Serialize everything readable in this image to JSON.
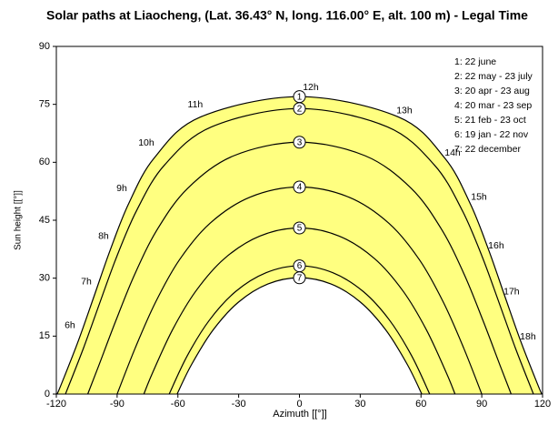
{
  "chart_data": {
    "type": "line",
    "title": "Solar paths at  Liaocheng, (Lat. 36.43° N, long. 116.00° E, alt. 100 m) - Legal Time",
    "x_label": "Azimuth [[°]]",
    "y_label": "Sun height [[°]]",
    "xlim": [
      -120,
      120
    ],
    "xticks": [
      -120,
      -90,
      -60,
      -30,
      0,
      30,
      60,
      90,
      120
    ],
    "ylim": [
      0,
      90
    ],
    "yticks": [
      0,
      15,
      30,
      45,
      60,
      75,
      90
    ],
    "grid": false,
    "legend": "top-right",
    "area_color": "#ffff80",
    "series": [
      {
        "name": "1: 22 june",
        "marker": "1",
        "color": "#000000",
        "x": [
          -119.6,
          -117.5,
          -109.2,
          -101.4,
          -93.4,
          -84.3,
          -71.7,
          -49.0,
          0,
          49.0,
          71.7,
          84.3,
          93.4,
          101.4,
          109.2,
          117.5,
          119.6
        ],
        "values": [
          0,
          2.6,
          13.7,
          25.3,
          37.3,
          49.3,
          61.1,
          71.7,
          77.0,
          71.7,
          61.1,
          49.3,
          37.3,
          25.3,
          13.7,
          2.6,
          0
        ]
      },
      {
        "name": "2: 22 may - 23 july",
        "marker": "2",
        "color": "#000000",
        "x": [
          -115.5,
          -106.6,
          -98.5,
          -90.1,
          -80.2,
          -66.6,
          -43.3,
          0,
          43.3,
          66.6,
          80.2,
          90.1,
          98.5,
          106.6,
          115.5
        ],
        "values": [
          0,
          11.9,
          23.7,
          35.7,
          47.7,
          59.3,
          69.2,
          73.9,
          69.2,
          59.3,
          47.7,
          35.7,
          23.7,
          11.9,
          0
        ]
      },
      {
        "name": "3: 20 apr - 23 aug",
        "marker": "3",
        "color": "#000000",
        "x": [
          -104.5,
          -99.4,
          -90.7,
          -81.4,
          -70.2,
          -55.1,
          -32.4,
          0,
          32.4,
          55.1,
          70.2,
          81.4,
          90.7,
          99.4,
          104.5
        ],
        "values": [
          0,
          6.9,
          18.9,
          30.9,
          42.6,
          53.3,
          61.7,
          65.2,
          61.7,
          53.3,
          42.6,
          30.9,
          18.9,
          6.9,
          0
        ]
      },
      {
        "name": "4: 20 mar - 23 sep",
        "marker": "4",
        "color": "#000000",
        "x": [
          -90,
          -81.0,
          -71.1,
          -59.3,
          -44.2,
          -24.3,
          0,
          24.3,
          44.2,
          59.3,
          71.1,
          81.0,
          90
        ],
        "values": [
          0,
          12.0,
          23.7,
          34.7,
          44.2,
          51.0,
          53.6,
          51.0,
          44.2,
          34.7,
          23.7,
          12.0,
          0
        ]
      },
      {
        "name": "5: 21 feb - 23 oct",
        "marker": "5",
        "color": "#000000",
        "x": [
          -76.8,
          -72.5,
          -62.7,
          -51.1,
          -37.0,
          -19.6,
          0,
          19.6,
          37.0,
          51.1,
          62.7,
          72.5,
          76.8
        ],
        "values": [
          0,
          5.5,
          16.6,
          26.7,
          35.1,
          40.9,
          43.0,
          40.9,
          35.1,
          26.7,
          16.6,
          5.5,
          0
        ]
      },
      {
        "name": "6: 19 jan - 22 nov",
        "marker": "6",
        "color": "#000000",
        "x": [
          -64.3,
          -55.5,
          -44.5,
          -31.6,
          -16.5,
          0,
          16.5,
          31.6,
          44.5,
          55.5,
          64.3
        ],
        "values": [
          0,
          9.8,
          19.1,
          26.5,
          31.4,
          33.2,
          31.4,
          26.5,
          19.1,
          9.8,
          0
        ]
      },
      {
        "name": "7: 22 december",
        "marker": "7",
        "color": "#000000",
        "x": [
          -60.4,
          -53.3,
          -42.6,
          -30.1,
          -15.6,
          0,
          15.6,
          30.1,
          42.6,
          53.3,
          60.4
        ],
        "values": [
          0,
          7.6,
          16.6,
          23.8,
          28.5,
          30.1,
          28.5,
          23.8,
          16.6,
          7.6,
          0
        ]
      }
    ],
    "annotations": [
      {
        "text": "6h",
        "x": -113.3,
        "y": 17.7
      },
      {
        "text": "7h",
        "x": -105.2,
        "y": 29.0
      },
      {
        "text": "8h",
        "x": -96.7,
        "y": 40.8
      },
      {
        "text": "9h",
        "x": -87.7,
        "y": 53.2
      },
      {
        "text": "10h",
        "x": -75.6,
        "y": 65.0
      },
      {
        "text": "11h",
        "x": -51.4,
        "y": 74.9
      },
      {
        "text": "12h",
        "x": 5.6,
        "y": 79.4
      },
      {
        "text": "13h",
        "x": 51.8,
        "y": 73.3
      },
      {
        "text": "14h",
        "x": 75.6,
        "y": 62.4
      },
      {
        "text": "15h",
        "x": 88.6,
        "y": 50.9
      },
      {
        "text": "16h",
        "x": 97.1,
        "y": 38.4
      },
      {
        "text": "17h",
        "x": 104.7,
        "y": 26.4
      },
      {
        "text": "18h",
        "x": 112.8,
        "y": 14.8
      }
    ]
  }
}
